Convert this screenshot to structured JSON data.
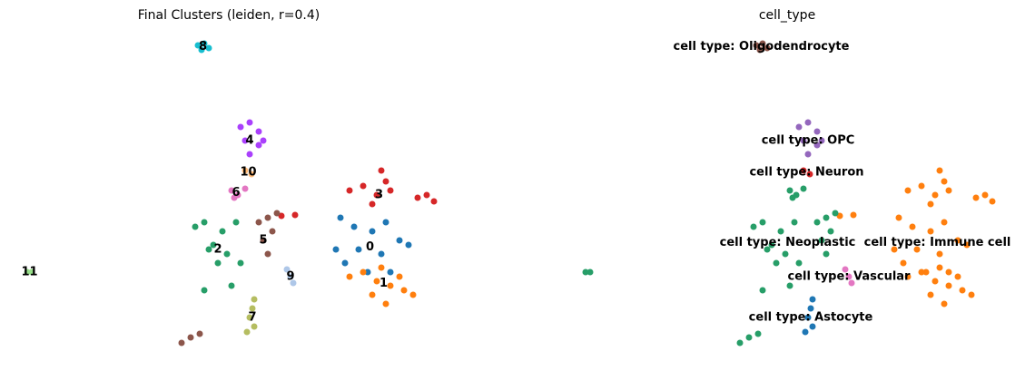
{
  "chart_data": [
    {
      "type": "scatter",
      "title": "Final Clusters (leiden, r=0.4)",
      "xlim": [
        0,
        470
      ],
      "ylim": [
        0,
        370
      ],
      "series": [
        {
          "name": "0",
          "color": "#1f77b4",
          "x": [
            355,
            370,
            390,
            405,
            420,
            375,
            400,
            360,
            430,
            385,
            350,
            410
          ],
          "y": [
            160,
            150,
            145,
            155,
            135,
            125,
            120,
            110,
            130,
            100,
            125,
            100
          ]
        },
        {
          "name": "1",
          "color": "#ff7f0e",
          "x": [
            380,
            395,
            410,
            425,
            390,
            405,
            420,
            365,
            435,
            400
          ],
          "y": [
            100,
            90,
            85,
            80,
            75,
            65,
            95,
            95,
            75,
            105
          ]
        },
        {
          "name": "2",
          "color": "#279e68",
          "x": [
            195,
            205,
            225,
            240,
            215,
            230,
            245,
            220,
            205,
            235,
            210
          ],
          "y": [
            150,
            155,
            145,
            155,
            130,
            120,
            110,
            110,
            80,
            85,
            125
          ]
        },
        {
          "name": "3",
          "color": "#d62728",
          "x": [
            365,
            380,
            395,
            405,
            400,
            410,
            390,
            440,
            450,
            458,
            290,
            305
          ],
          "y": [
            190,
            195,
            185,
            200,
            212,
            190,
            175,
            182,
            185,
            178,
            162,
            163
          ]
        },
        {
          "name": "4",
          "color": "#aa40fc",
          "x": [
            245,
            255,
            265,
            250,
            265,
            255,
            270
          ],
          "y": [
            260,
            265,
            255,
            245,
            240,
            230,
            245
          ]
        },
        {
          "name": "5",
          "color": "#8c564b",
          "x": [
            265,
            275,
            280,
            270,
            275,
            285,
            180,
            190,
            200
          ],
          "y": [
            155,
            160,
            145,
            135,
            120,
            165,
            22,
            28,
            32
          ]
        },
        {
          "name": "6",
          "color": "#e377c2",
          "x": [
            235,
            242,
            250,
            238
          ],
          "y": [
            190,
            185,
            192,
            182
          ]
        },
        {
          "name": "7",
          "color": "#b5bd61",
          "x": [
            255,
            260,
            252,
            260,
            258
          ],
          "y": [
            50,
            40,
            34,
            70,
            60
          ]
        },
        {
          "name": "8",
          "color": "#17becf",
          "x": [
            198,
            205,
            210,
            202
          ],
          "y": [
            350,
            352,
            347,
            345
          ]
        },
        {
          "name": "9",
          "color": "#aec7e8",
          "x": [
            296,
            300,
            303
          ],
          "y": [
            103,
            95,
            88
          ]
        },
        {
          "name": "10",
          "color": "#ffbb78",
          "x": [
            250,
            257
          ],
          "y": [
            212,
            208
          ]
        },
        {
          "name": "11",
          "color": "#98df8a",
          "x": [
            10,
            15
          ],
          "y": [
            100,
            100
          ]
        }
      ]
    },
    {
      "type": "scatter",
      "title": "cell_type",
      "xlim": [
        0,
        470
      ],
      "ylim": [
        0,
        370
      ],
      "series": [
        {
          "name": "cell type: Astocyte",
          "color": "#1f77b4",
          "x": [
            255,
            260,
            252,
            260,
            258
          ],
          "y": [
            50,
            40,
            34,
            70,
            60
          ]
        },
        {
          "name": "cell type: Immune cell",
          "color": "#ff7f0e",
          "x": [
            355,
            370,
            390,
            405,
            420,
            375,
            400,
            360,
            430,
            385,
            350,
            410,
            380,
            395,
            410,
            425,
            390,
            405,
            420,
            365,
            435,
            400,
            365,
            380,
            395,
            405,
            400,
            410,
            390,
            440,
            450,
            458,
            290,
            305
          ],
          "y": [
            160,
            150,
            145,
            155,
            135,
            125,
            120,
            110,
            130,
            100,
            125,
            100,
            100,
            90,
            85,
            80,
            75,
            65,
            95,
            95,
            75,
            105,
            190,
            195,
            185,
            200,
            212,
            190,
            175,
            182,
            185,
            178,
            162,
            163
          ]
        },
        {
          "name": "cell type: Neoplastic",
          "color": "#279e68",
          "x": [
            195,
            205,
            225,
            240,
            215,
            230,
            245,
            220,
            205,
            235,
            210,
            265,
            275,
            280,
            270,
            275,
            285,
            180,
            190,
            200,
            235,
            242,
            250,
            238,
            10,
            15
          ],
          "y": [
            150,
            155,
            145,
            155,
            130,
            120,
            110,
            110,
            80,
            85,
            125,
            155,
            160,
            145,
            135,
            120,
            165,
            22,
            28,
            32,
            190,
            185,
            192,
            182,
            100,
            100
          ]
        },
        {
          "name": "cell type: Neuron",
          "color": "#d62728",
          "x": [
            250,
            257
          ],
          "y": [
            212,
            208
          ]
        },
        {
          "name": "cell type: OPC",
          "color": "#9467bd",
          "x": [
            245,
            255,
            265,
            250,
            265,
            255,
            270
          ],
          "y": [
            260,
            265,
            255,
            245,
            240,
            230,
            245
          ]
        },
        {
          "name": "cell type: Oligodendrocyte",
          "color": "#8c564b",
          "x": [
            198,
            205,
            210,
            202
          ],
          "y": [
            350,
            352,
            347,
            345
          ]
        },
        {
          "name": "cell type: Vascular",
          "color": "#e377c2",
          "x": [
            296,
            300,
            303
          ],
          "y": [
            103,
            95,
            88
          ]
        }
      ]
    }
  ]
}
